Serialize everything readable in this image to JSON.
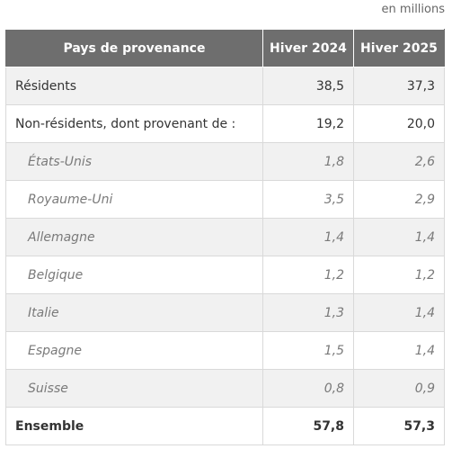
{
  "unit_note": "en millions",
  "table": {
    "headers": [
      "Pays de provenance",
      "Hiver 2024",
      "Hiver 2025"
    ],
    "rows": [
      {
        "label": "Résidents",
        "v2024": "38,5",
        "v2025": "37,3"
      },
      {
        "label": "Non-résidents, dont provenant de :",
        "v2024": "19,2",
        "v2025": "20,0"
      },
      {
        "label": "États-Unis",
        "v2024": "1,8",
        "v2025": "2,6"
      },
      {
        "label": "Royaume-Uni",
        "v2024": "3,5",
        "v2025": "2,9"
      },
      {
        "label": "Allemagne",
        "v2024": "1,4",
        "v2025": "1,4"
      },
      {
        "label": "Belgique",
        "v2024": "1,2",
        "v2025": "1,2"
      },
      {
        "label": "Italie",
        "v2024": "1,3",
        "v2025": "1,4"
      },
      {
        "label": "Espagne",
        "v2024": "1,5",
        "v2025": "1,4"
      },
      {
        "label": "Suisse",
        "v2024": "0,8",
        "v2025": "0,9"
      },
      {
        "label": "Ensemble",
        "v2024": "57,8",
        "v2025": "57,3"
      }
    ]
  },
  "colors": {
    "header_bg": "#6e6e6e",
    "shaded_row": "#f1f1f1"
  }
}
